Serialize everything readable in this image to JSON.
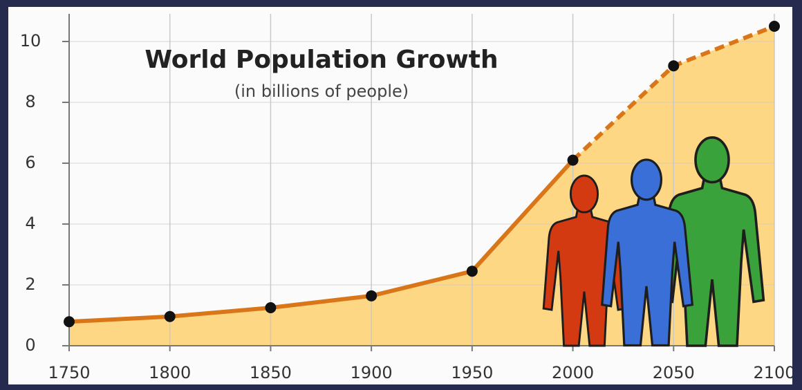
{
  "chart_data": {
    "type": "line",
    "title": "World Population Growth",
    "subtitle": "(in billions of people)",
    "x": [
      1750,
      1800,
      1850,
      1900,
      1950,
      2000,
      2050,
      2100
    ],
    "values": [
      0.79,
      0.96,
      1.25,
      1.64,
      2.45,
      6.1,
      9.2,
      10.5
    ],
    "dashed_from": 2000,
    "color": "#d9761a",
    "area_color": "#fdd784",
    "point_color": "#111111",
    "xlim": [
      1750,
      2100
    ],
    "xticks": [
      1750,
      1800,
      1850,
      1900,
      1950,
      2000,
      2050,
      2100
    ],
    "ylim": [
      0,
      10
    ],
    "yticks": [
      0,
      2,
      4,
      6,
      8,
      10
    ],
    "grid": true
  }
}
